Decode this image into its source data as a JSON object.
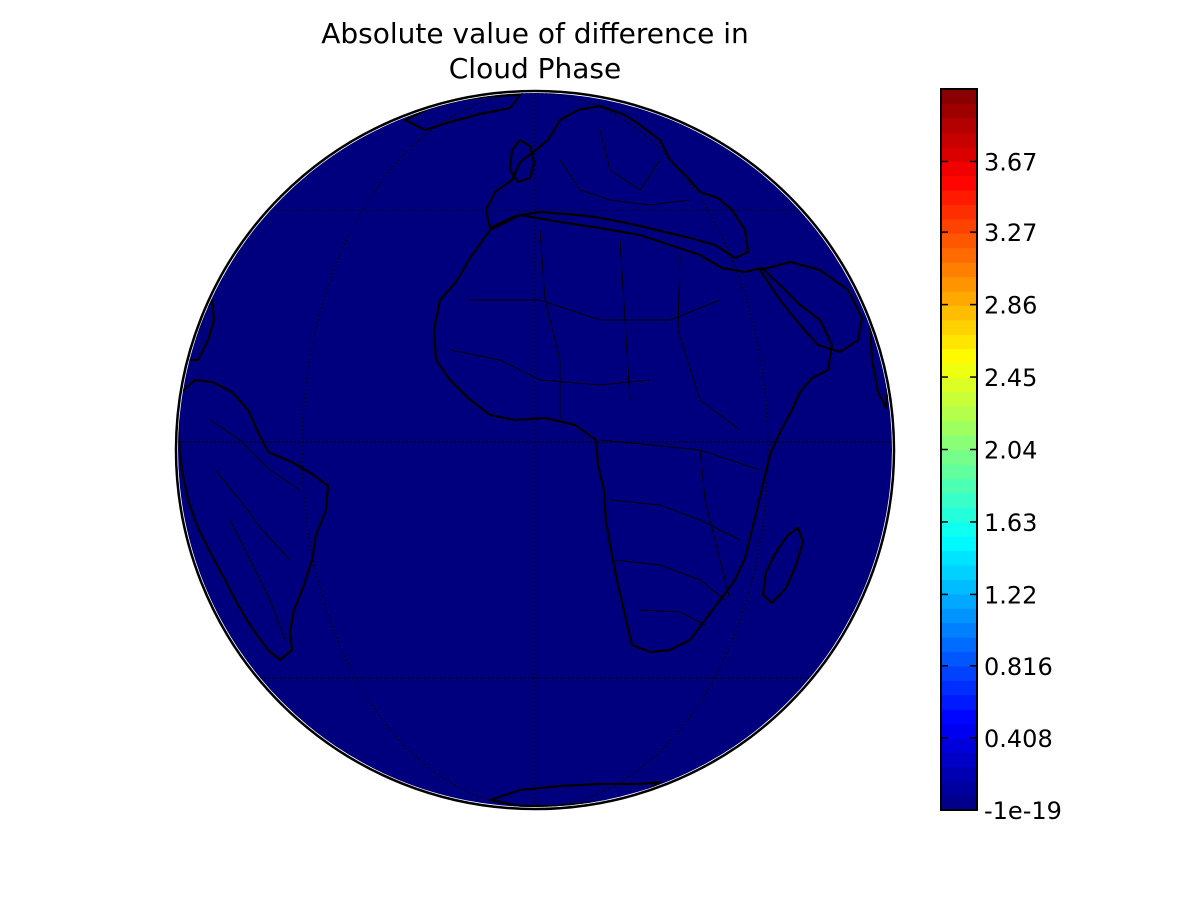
{
  "title": [
    "Absolute value of difference in",
    "Cloud Phase"
  ],
  "colormap": {
    "name": "jet",
    "min": -1e-19,
    "max": 4.08,
    "levels": 50,
    "ticks": [
      {
        "value": -1e-19,
        "label": "-1e-19"
      },
      {
        "value": 0.408,
        "label": "0.408"
      },
      {
        "value": 0.816,
        "label": "0.816"
      },
      {
        "value": 1.22,
        "label": "1.22"
      },
      {
        "value": 1.63,
        "label": "1.63"
      },
      {
        "value": 2.04,
        "label": "2.04"
      },
      {
        "value": 2.45,
        "label": "2.45"
      },
      {
        "value": 2.86,
        "label": "2.86"
      },
      {
        "value": 3.27,
        "label": "3.27"
      },
      {
        "value": 3.67,
        "label": "3.67"
      }
    ]
  },
  "map": {
    "projection": "orthographic",
    "field_value": 0,
    "fill_color": "#00007f",
    "coastline_color": "#000000"
  }
}
